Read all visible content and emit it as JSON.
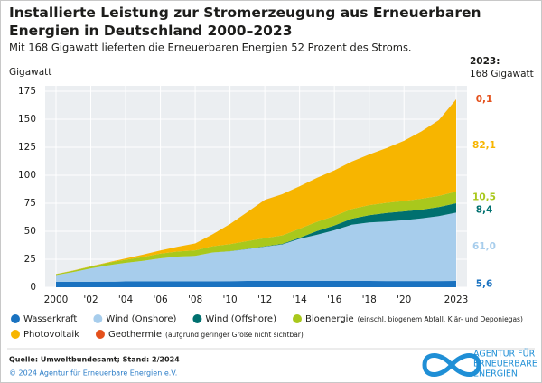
{
  "chart_data": {
    "type": "stacked_area",
    "title": "Installierte Leistung zur Stromerzeugung aus Erneuerbaren Energien in Deutschland 2000–2023",
    "subtitle": "Mit 168 Gigawatt lieferten die Erneuerbaren Energien 52 Prozent des Stroms.",
    "y_label": "Gigawatt",
    "end_title": "2023:",
    "end_total": "168 Gigawatt",
    "x": [
      2000,
      2001,
      2002,
      2003,
      2004,
      2005,
      2006,
      2007,
      2008,
      2009,
      2010,
      2011,
      2012,
      2013,
      2014,
      2015,
      2016,
      2017,
      2018,
      2019,
      2020,
      2021,
      2022,
      2023
    ],
    "xlim": [
      2000,
      2023
    ],
    "xticks": [
      2000,
      {
        "value": 2002,
        "label": "'02"
      },
      {
        "value": 2004,
        "label": "'04"
      },
      {
        "value": 2006,
        "label": "'06"
      },
      {
        "value": 2008,
        "label": "'08"
      },
      {
        "value": 2010,
        "label": "'10"
      },
      {
        "value": 2012,
        "label": "'12"
      },
      {
        "value": 2014,
        "label": "'14"
      },
      {
        "value": 2016,
        "label": "'16"
      },
      {
        "value": 2018,
        "label": "'18"
      },
      {
        "value": 2020,
        "label": "'20"
      },
      2023
    ],
    "ylim": [
      0,
      175
    ],
    "yticks": [
      0,
      25,
      50,
      75,
      100,
      125,
      150,
      175
    ],
    "grid": true,
    "series": [
      {
        "name": "Wasserkraft",
        "color": "#1a72c0",
        "values": [
          4.8,
          4.9,
          4.9,
          5.0,
          5.2,
          5.2,
          5.2,
          5.2,
          5.2,
          5.3,
          5.4,
          5.6,
          5.6,
          5.6,
          5.6,
          5.6,
          5.6,
          5.6,
          5.6,
          5.5,
          5.5,
          5.5,
          5.5,
          5.6
        ],
        "value_labels": [
          null,
          null,
          null,
          null,
          null,
          null,
          null,
          null,
          null,
          null,
          null,
          null,
          null,
          null,
          null,
          null,
          null,
          null,
          null,
          null,
          null,
          null,
          null,
          "5,6"
        ]
      },
      {
        "name": "Wind (Onshore)",
        "color": "#a7cdec",
        "values": [
          6.1,
          8.7,
          11.9,
          14.6,
          16.6,
          18.4,
          20.6,
          22.2,
          22.8,
          25.7,
          26.8,
          28.5,
          30.7,
          32.6,
          37.6,
          41.3,
          45.3,
          50.2,
          52.3,
          53.2,
          54.4,
          56.0,
          58.0,
          61.0
        ],
        "value_labels": [
          null,
          null,
          null,
          null,
          null,
          null,
          null,
          null,
          null,
          null,
          null,
          null,
          null,
          null,
          null,
          null,
          null,
          null,
          null,
          null,
          null,
          null,
          null,
          "61,0"
        ]
      },
      {
        "name": "Wind (Offshore)",
        "color": "#00706f",
        "values": [
          0,
          0,
          0,
          0,
          0,
          0,
          0,
          0,
          0,
          0.04,
          0.08,
          0.19,
          0.27,
          0.52,
          0.99,
          3.3,
          4.2,
          5.4,
          6.4,
          7.6,
          7.8,
          7.8,
          8.1,
          8.4
        ],
        "value_labels": [
          null,
          null,
          null,
          null,
          null,
          null,
          null,
          null,
          null,
          null,
          null,
          null,
          null,
          null,
          null,
          null,
          null,
          null,
          null,
          null,
          null,
          null,
          null,
          "8,4"
        ]
      },
      {
        "name": "Bioenergie",
        "note": "(einschl. biogenem Abfall, Klär- und Deponiegas)",
        "color": "#a9c81c",
        "values": [
          0.8,
          1.2,
          1.6,
          2.3,
          2.8,
          3.4,
          4.2,
          4.6,
          5.0,
          5.6,
          6.2,
          6.9,
          7.3,
          7.6,
          8.0,
          8.3,
          8.5,
          8.7,
          9.0,
          9.1,
          9.3,
          9.7,
          10.0,
          10.5
        ],
        "value_labels": [
          null,
          null,
          null,
          null,
          null,
          null,
          null,
          null,
          null,
          null,
          null,
          null,
          null,
          null,
          null,
          null,
          null,
          null,
          null,
          null,
          null,
          null,
          null,
          "10,5"
        ]
      },
      {
        "name": "Photovoltaik",
        "color": "#f7b500",
        "values": [
          0.1,
          0.2,
          0.3,
          0.4,
          1.1,
          2.1,
          2.9,
          4.2,
          6.1,
          10.6,
          18.0,
          25.9,
          34.1,
          36.7,
          37.9,
          39.2,
          40.7,
          42.3,
          45.2,
          48.9,
          53.7,
          60.1,
          67.5,
          82.1
        ],
        "value_labels": [
          null,
          null,
          null,
          null,
          null,
          null,
          null,
          null,
          null,
          null,
          null,
          null,
          null,
          null,
          null,
          null,
          null,
          null,
          null,
          null,
          null,
          null,
          null,
          "82,1"
        ]
      },
      {
        "name": "Geothermie",
        "note": "(aufgrund geringer Größe nicht sichtbar)",
        "color": "#e4501b",
        "values": [
          0,
          0,
          0,
          0,
          0,
          0,
          0,
          0.003,
          0.003,
          0.008,
          0.008,
          0.008,
          0.012,
          0.03,
          0.03,
          0.03,
          0.04,
          0.04,
          0.04,
          0.04,
          0.05,
          0.05,
          0.05,
          0.1
        ],
        "value_labels": [
          null,
          null,
          null,
          null,
          null,
          null,
          null,
          null,
          null,
          null,
          null,
          null,
          null,
          null,
          null,
          null,
          null,
          null,
          null,
          null,
          null,
          null,
          null,
          "0,1"
        ]
      }
    ]
  },
  "footer": {
    "source": "Quelle: Umweltbundesamt; Stand: 2/2024",
    "copyright": "© 2024 Agentur für Erneuerbare Energien e.V.",
    "logo": [
      "AGENTUR FÜR",
      "ERNEUERBARE",
      "ENERGIEN"
    ]
  }
}
